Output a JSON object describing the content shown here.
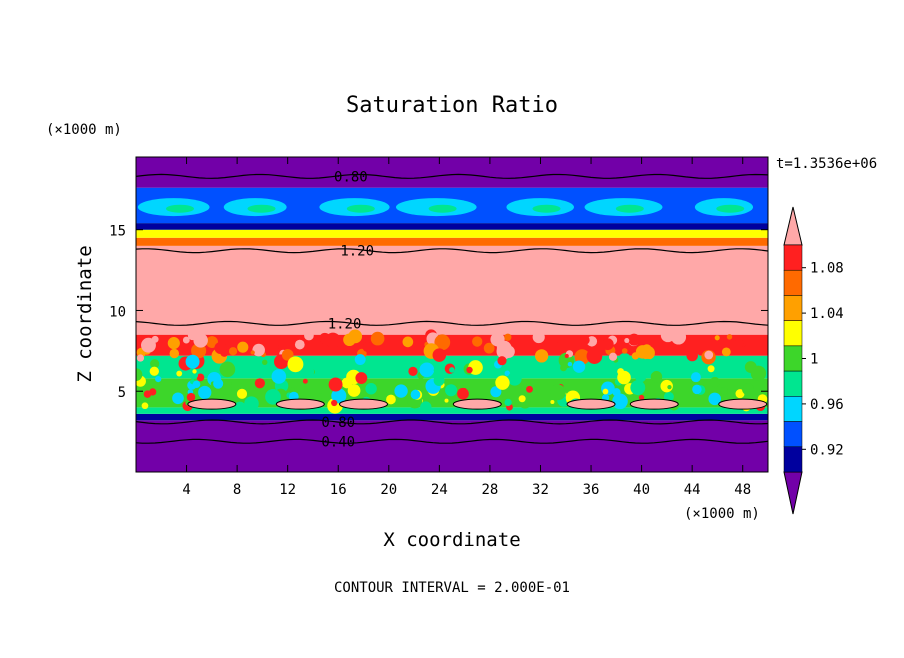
{
  "chart_data": {
    "type": "heatmap",
    "title": "Saturation Ratio",
    "xlabel": "X coordinate",
    "ylabel": "Z coordinate",
    "x_unit": "(×1000 m)",
    "y_unit": "(×1000 m)",
    "time_label": "t=1.3536e+06",
    "footer": "CONTOUR INTERVAL = 2.000E-01",
    "xlim": [
      0,
      50
    ],
    "ylim": [
      0,
      19.5
    ],
    "x_ticks": [
      4,
      8,
      12,
      16,
      20,
      24,
      28,
      32,
      36,
      40,
      44,
      48
    ],
    "y_ticks": [
      5,
      10,
      15
    ],
    "colorbar": {
      "tick_labels": [
        "1.08",
        "1.04",
        "1",
        "0.96",
        "0.92"
      ],
      "tick_values": [
        1.08,
        1.04,
        1.0,
        0.96,
        0.92
      ],
      "min": 0.9,
      "max": 1.1,
      "colors": [
        "#7200a8",
        "#00009e",
        "#0050ff",
        "#00d6ff",
        "#00e690",
        "#3dd62a",
        "#ffff00",
        "#ffa000",
        "#ff6a00",
        "#ff2020",
        "#ffa8a8"
      ]
    },
    "layers": [
      {
        "z0": 0,
        "z1": 3.2,
        "color": "#7200a8"
      },
      {
        "z0": 3.2,
        "z1": 3.6,
        "color": "#00009e"
      },
      {
        "z0": 3.6,
        "z1": 4.0,
        "color": "#00e690"
      },
      {
        "z0": 4.0,
        "z1": 5.8,
        "color": "#3dd62a"
      },
      {
        "z0": 5.8,
        "z1": 7.2,
        "color": "#00e690"
      },
      {
        "z0": 7.2,
        "z1": 8.5,
        "color": "#ff2020"
      },
      {
        "z0": 8.5,
        "z1": 14.0,
        "color": "#ffa8a8"
      },
      {
        "z0": 14.0,
        "z1": 14.5,
        "color": "#ff6a00"
      },
      {
        "z0": 14.5,
        "z1": 15.0,
        "color": "#ffff00"
      },
      {
        "z0": 15.0,
        "z1": 15.4,
        "color": "#00e690"
      },
      {
        "z0": 15.4,
        "z1": 17.6,
        "color": "#0050ff"
      },
      {
        "z0": 17.6,
        "z1": 19.5,
        "color": "#7200a8"
      }
    ],
    "contours": [
      {
        "z": 18.3,
        "label": "0.80",
        "label_x": 17
      },
      {
        "z": 13.7,
        "label": "1.20",
        "label_x": 17.5
      },
      {
        "z": 9.2,
        "label": "1.20",
        "label_x": 16.5
      },
      {
        "z": 3.1,
        "label": "0.80",
        "label_x": 16
      },
      {
        "z": 1.9,
        "label": "0.40",
        "label_x": 16
      }
    ]
  }
}
